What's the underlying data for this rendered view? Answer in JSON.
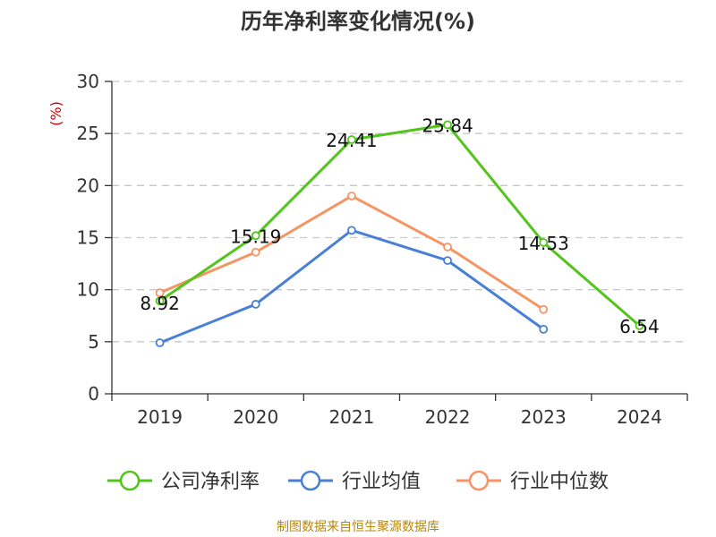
{
  "title": "历年净利率变化情况(%)",
  "footer": "制图数据来自恒生聚源数据库",
  "chart_data": {
    "type": "line",
    "categories": [
      "2019",
      "2020",
      "2021",
      "2022",
      "2023",
      "2024"
    ],
    "ylabel": "(%)",
    "ylim": [
      0,
      30
    ],
    "yticks": [
      0,
      5,
      10,
      15,
      20,
      25,
      30
    ],
    "grid": true,
    "legend_position": "bottom",
    "series": [
      {
        "name": "公司净利率",
        "color": "#52c41a",
        "values": [
          8.92,
          15.19,
          24.41,
          25.84,
          14.53,
          6.54
        ],
        "labels": [
          "8.92",
          "15.19",
          "24.41",
          "25.84",
          "14.53",
          "6.54"
        ]
      },
      {
        "name": "行业均值",
        "color": "#4a7fd6",
        "values": [
          4.9,
          8.6,
          15.7,
          12.8,
          6.2,
          null
        ]
      },
      {
        "name": "行业中位数",
        "color": "#f59564",
        "values": [
          9.7,
          13.6,
          19.0,
          14.1,
          8.1,
          null
        ]
      }
    ]
  }
}
